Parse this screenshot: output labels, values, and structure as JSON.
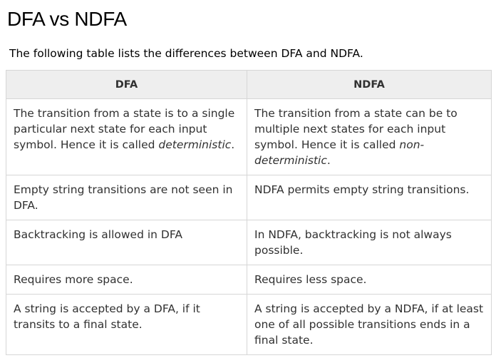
{
  "page": {
    "title": "DFA vs NDFA",
    "intro": "The following table lists the differences between DFA and NDFA."
  },
  "table": {
    "headers": [
      "DFA",
      "NDFA"
    ],
    "rows": [
      {
        "dfa": {
          "before": "The transition from a state is to a single particular next state for each input symbol. Hence it is called ",
          "emph": "deterministic",
          "after": "."
        },
        "ndfa": {
          "before": "The transition from a state can be to multiple next states for each input symbol. Hence it is called ",
          "emph": "non-deterministic",
          "after": "."
        }
      },
      {
        "dfa": "Empty string transitions are not seen in DFA.",
        "ndfa": "NDFA permits empty string transitions."
      },
      {
        "dfa": "Backtracking is allowed in DFA",
        "ndfa": "In NDFA, backtracking is not always possible."
      },
      {
        "dfa": "Requires more space.",
        "ndfa": "Requires less space."
      },
      {
        "dfa": "A string is accepted by a DFA, if it transits to a final state.",
        "ndfa": "A string is accepted by a NDFA, if at least one of all possible transitions ends in a final state."
      }
    ]
  }
}
